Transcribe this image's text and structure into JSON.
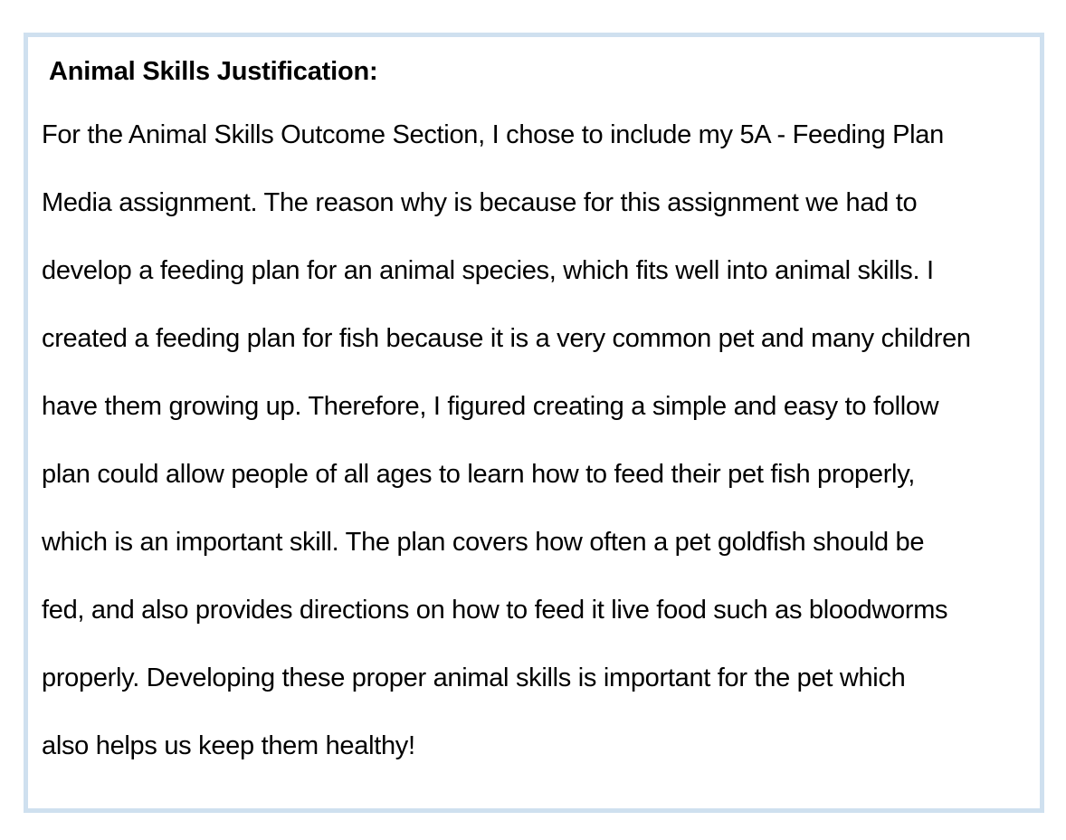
{
  "section": {
    "heading": "Animal Skills Justification:",
    "lines": [
      "For the Animal Skills Outcome Section, I chose to include my 5A - Feeding Plan",
      "Media assignment. The reason why is because for this assignment we had to",
      "develop a feeding plan for an animal species, which fits well into animal skills. I",
      "created a feeding plan for fish because it is a very common pet and many children",
      "have them growing up. Therefore, I figured creating a simple and easy to follow",
      "plan could allow people of all ages to learn how to feed their pet fish properly,",
      "which is an important skill. The plan covers how often a pet goldfish should be",
      "fed, and also provides directions on how to feed it live food such as bloodworms",
      "properly. Developing these proper animal skills is important for the pet which",
      "also helps us keep them healthy!"
    ]
  },
  "colors": {
    "border": "#cfe0ef",
    "text": "#000000",
    "background": "#ffffff"
  }
}
